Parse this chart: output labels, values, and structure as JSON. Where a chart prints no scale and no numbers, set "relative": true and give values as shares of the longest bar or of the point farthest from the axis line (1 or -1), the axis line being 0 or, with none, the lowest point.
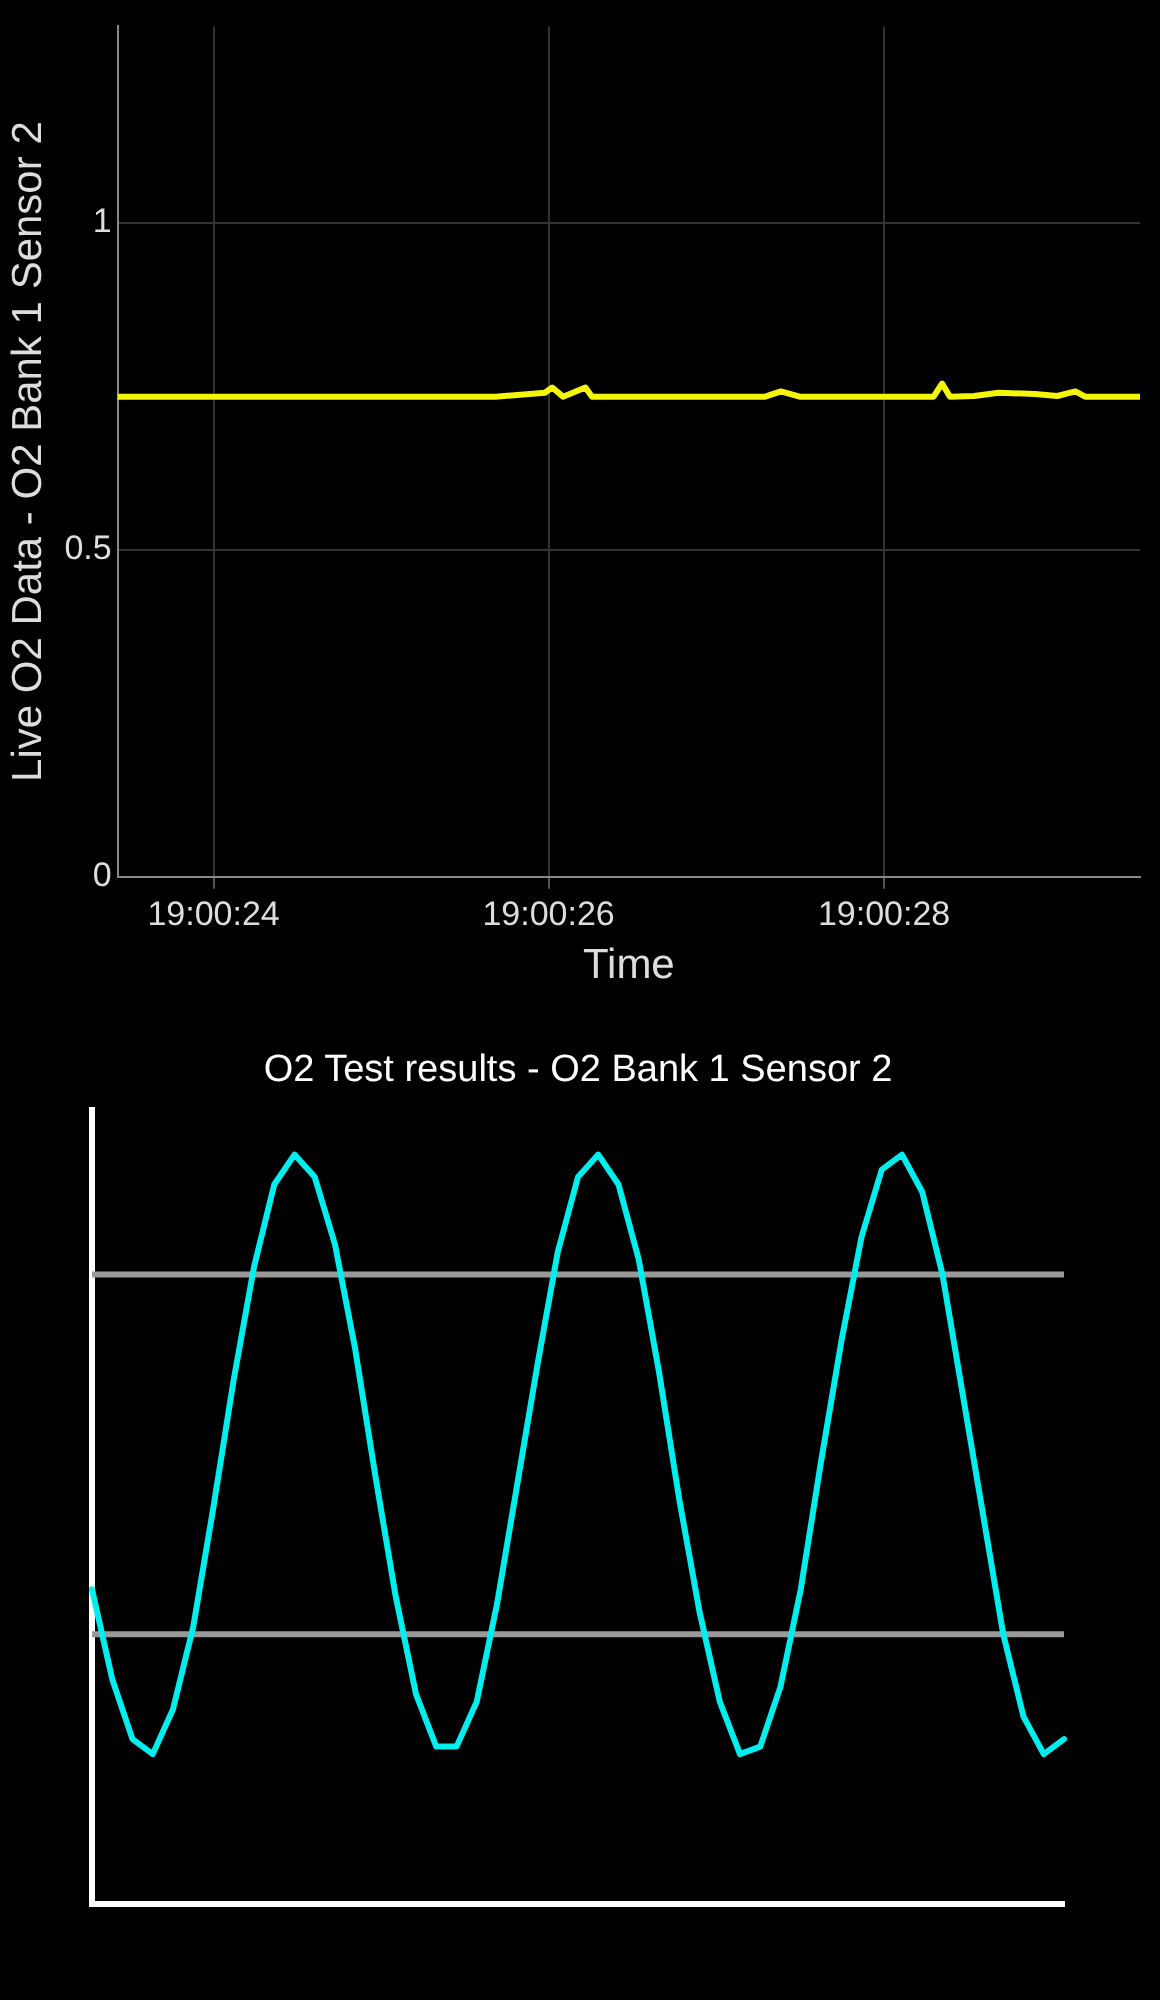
{
  "chart_data": [
    {
      "type": "line",
      "xlabel": "Time",
      "ylabel": "Live O2 Data - O2 Bank 1 Sensor 2",
      "color": "#f5f50a",
      "x": [
        19.006508,
        19.007134,
        19.007216,
        19.007228,
        19.007246,
        19.007283,
        19.007294,
        19.007581,
        19.007607,
        19.007638,
        19.00786,
        19.007874,
        19.007887,
        19.007927,
        19.007968,
        19.008028,
        19.008065,
        19.008095,
        19.008111,
        19.008202
      ],
      "values": [
        0.734,
        0.734,
        0.74,
        0.748,
        0.734,
        0.748,
        0.734,
        0.734,
        0.742,
        0.734,
        0.734,
        0.754,
        0.734,
        0.735,
        0.74,
        0.738,
        0.735,
        0.742,
        0.734,
        0.734
      ],
      "xlim": [
        19.006508,
        19.008202
      ],
      "ylim": [
        0,
        1.3
      ],
      "xticks": [
        {
          "value": 19.006667,
          "label": "19:00:24"
        },
        {
          "value": 19.007222,
          "label": "19:00:26"
        },
        {
          "value": 19.007778,
          "label": "19:00:28"
        }
      ],
      "yticks": [
        0,
        0.5,
        1
      ],
      "grid": true
    },
    {
      "type": "line",
      "title": "O2 Test results - O2 Bank 1 Sensor 2",
      "color": "#00eeee",
      "relative": true,
      "categories": [
        null,
        null,
        null,
        null,
        null,
        null,
        null,
        null,
        null,
        null,
        null,
        null,
        null,
        null,
        null,
        null,
        null,
        null,
        null,
        null,
        null,
        null,
        null,
        null,
        null,
        null,
        null,
        null,
        null,
        null,
        null,
        null,
        null,
        null,
        null,
        null,
        null,
        null,
        null,
        null,
        null,
        null,
        null,
        null,
        null,
        null,
        null,
        null,
        null
      ],
      "values": [
        0.42,
        0.3,
        0.22,
        0.2,
        0.26,
        0.37,
        0.53,
        0.7,
        0.85,
        0.96,
        1,
        0.97,
        0.88,
        0.74,
        0.57,
        0.41,
        0.28,
        0.21,
        0.21,
        0.27,
        0.4,
        0.56,
        0.72,
        0.87,
        0.97,
        1,
        0.96,
        0.86,
        0.71,
        0.54,
        0.39,
        0.27,
        0.2,
        0.21,
        0.29,
        0.42,
        0.59,
        0.75,
        0.89,
        0.98,
        1,
        0.95,
        0.84,
        0.68,
        0.52,
        0.36,
        0.25,
        0.2,
        0.22
      ],
      "ref_lines": [
        {
          "axis": "y",
          "value": 0.84,
          "color": "#999999"
        },
        {
          "axis": "y",
          "value": 0.36,
          "color": "#999999"
        }
      ]
    }
  ]
}
